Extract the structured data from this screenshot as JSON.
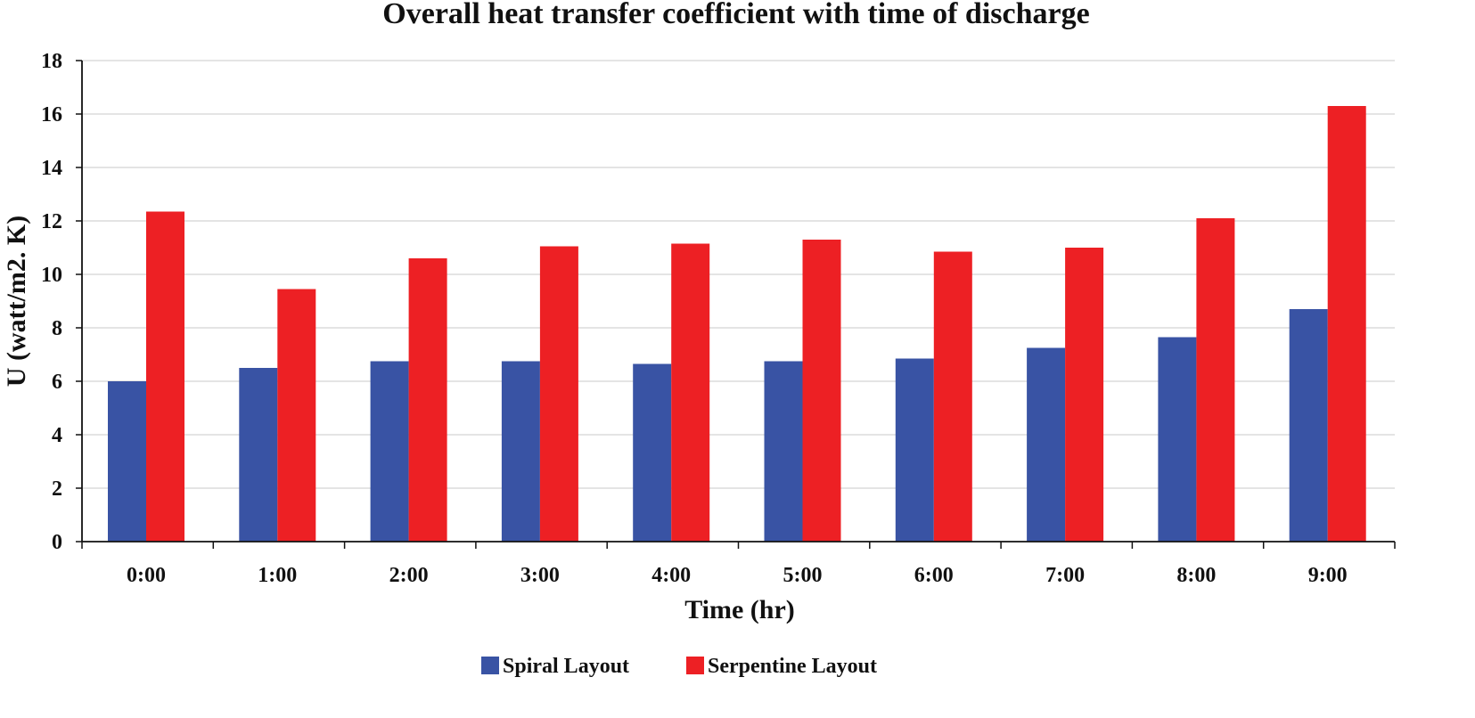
{
  "chart_data": {
    "type": "bar",
    "title": "Overall heat transfer coefficient with time of discharge",
    "xlabel": "Time (hr)",
    "ylabel": "U (watt/m2. K)",
    "categories": [
      "0:00",
      "1:00",
      "2:00",
      "3:00",
      "4:00",
      "5:00",
      "6:00",
      "7:00",
      "8:00",
      "9:00"
    ],
    "ylim": [
      0,
      18
    ],
    "yticks": [
      0,
      2,
      4,
      6,
      8,
      10,
      12,
      14,
      16,
      18
    ],
    "grid": true,
    "legend_position": "bottom",
    "series": [
      {
        "name": "Spiral Layout",
        "color": "#3953a4",
        "values": [
          6.0,
          6.5,
          6.75,
          6.75,
          6.65,
          6.75,
          6.85,
          7.25,
          7.65,
          8.7
        ]
      },
      {
        "name": "Serpentine Layout",
        "color": "#ed2024",
        "values": [
          12.35,
          9.45,
          10.6,
          11.05,
          11.15,
          11.3,
          10.85,
          11.0,
          12.1,
          16.3
        ]
      }
    ]
  }
}
